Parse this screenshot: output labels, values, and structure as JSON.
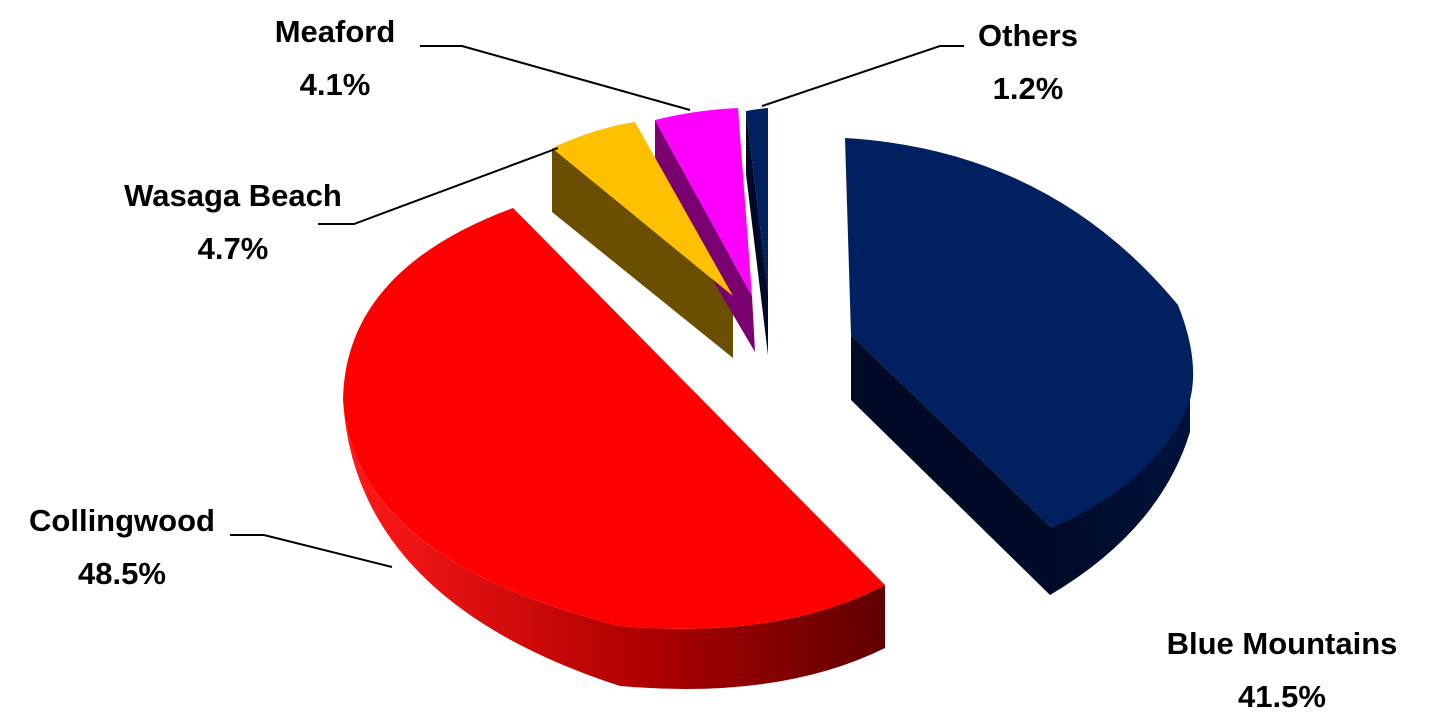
{
  "chart_data": {
    "type": "pie",
    "three_d": true,
    "exploded": true,
    "slices": [
      {
        "name": "Blue Mountains",
        "value": 41.5,
        "value_label": "41.5%",
        "color": "#002060"
      },
      {
        "name": "Collingwood",
        "value": 48.5,
        "value_label": "48.5%",
        "color": "#FF0000"
      },
      {
        "name": "Wasaga Beach",
        "value": 4.7,
        "value_label": "4.7%",
        "color": "#FFC000"
      },
      {
        "name": "Meaford",
        "value": 4.1,
        "value_label": "4.1%",
        "color": "#FF00FF"
      },
      {
        "name": "Others",
        "value": 1.2,
        "value_label": "1.2%",
        "color": "#002060"
      }
    ],
    "legend": "none",
    "data_labels": "outside with leader lines"
  }
}
